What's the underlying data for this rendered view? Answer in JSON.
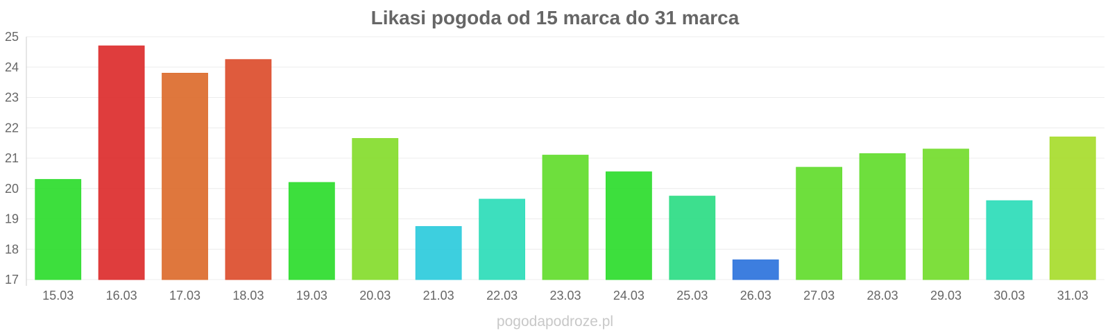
{
  "chart_data": {
    "type": "bar",
    "title": "Likasi pogoda od 15 marca do 31 marca",
    "xlabel": "",
    "ylabel": "",
    "ylim": [
      17,
      25
    ],
    "yticks": [
      17,
      18,
      19,
      20,
      21,
      22,
      23,
      24,
      25
    ],
    "grid": true,
    "categories": [
      "15.03",
      "16.03",
      "17.03",
      "18.03",
      "19.03",
      "20.03",
      "21.03",
      "22.03",
      "23.03",
      "24.03",
      "25.03",
      "26.03",
      "27.03",
      "28.03",
      "29.03",
      "30.03",
      "31.03"
    ],
    "values": [
      20.3,
      24.7,
      23.8,
      24.25,
      20.2,
      21.65,
      18.75,
      19.65,
      21.1,
      20.55,
      19.75,
      17.65,
      20.7,
      21.15,
      21.3,
      19.6,
      21.7
    ],
    "colors": [
      "#33dd33",
      "#dd3333",
      "#dd7033",
      "#dd5233",
      "#33dd33",
      "#88dd33",
      "#33ccdd",
      "#33ddbb",
      "#66dd33",
      "#33dd33",
      "#33dd88",
      "#3377dd",
      "#66dd33",
      "#66dd33",
      "#77dd33",
      "#33ddbb",
      "#aadd33"
    ]
  },
  "watermark": "pogodapodroze.pl"
}
